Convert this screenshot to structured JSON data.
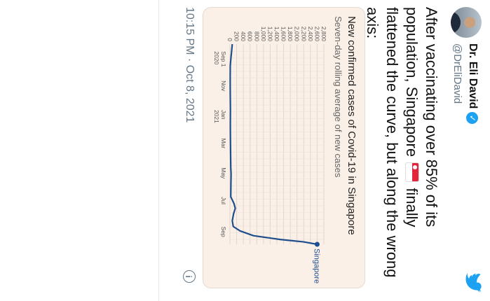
{
  "tweet": {
    "author_name": "Dr. Eli David",
    "handle": "@DrEliDavid",
    "text_before_flag": "After vaccinating over 85% of its population, Singapore",
    "text_after_flag": "finally flattened the curve, but along the wrong axis:",
    "timestamp": "10:15 PM · Oct 8, 2021",
    "icons": [
      "verified-badge-icon",
      "twitter-bird-icon",
      "singapore-flag-icon",
      "info-icon"
    ],
    "colors": {
      "twitter_blue": "#1da1f2",
      "card_bg": "#fbf0e8",
      "line": "#1f4e8c"
    }
  },
  "chart_data": {
    "type": "line",
    "title": "New confirmed cases of Covid-19 in Singapore",
    "subtitle": "Seven-day rolling average of new cases",
    "x_tick_labels": [
      [
        "Sep 1",
        "2020"
      ],
      [
        "Nov"
      ],
      [
        "Jan",
        "2021"
      ],
      [
        "Mar"
      ],
      [
        "May"
      ],
      [
        "Jul"
      ],
      [
        "Sep"
      ]
    ],
    "y_ticks": [
      0,
      200,
      400,
      600,
      800,
      1000,
      1200,
      1400,
      1600,
      1800,
      2000,
      2200,
      2400,
      2600,
      2800
    ],
    "y_tick_labels": [
      "0",
      "200",
      "400",
      "600",
      "800",
      "1,000",
      "1,200",
      "1,400",
      "1,600",
      "1,800",
      "2,000",
      "2,200",
      "2,400",
      "2,600",
      "2,800"
    ],
    "ylim": [
      0,
      2800
    ],
    "grid": true,
    "series": [
      {
        "name": "Singapore",
        "x_months_labels": [
          "2020-08-17",
          "2020-09-01",
          "2020-09-15",
          "2020-10-01",
          "2020-11-01",
          "2020-12-01",
          "2021-01-01",
          "2021-02-01",
          "2021-03-01",
          "2021-04-01",
          "2021-05-01",
          "2021-05-15",
          "2021-06-01",
          "2021-07-01",
          "2021-07-15",
          "2021-07-25",
          "2021-08-05",
          "2021-08-20",
          "2021-09-01",
          "2021-09-10",
          "2021-09-20",
          "2021-09-28",
          "2021-10-03",
          "2021-10-08"
        ],
        "values": [
          70,
          50,
          30,
          10,
          8,
          10,
          15,
          12,
          15,
          20,
          25,
          35,
          30,
          25,
          120,
          160,
          110,
          70,
          100,
          300,
          700,
          1500,
          2200,
          2600
        ]
      }
    ]
  }
}
